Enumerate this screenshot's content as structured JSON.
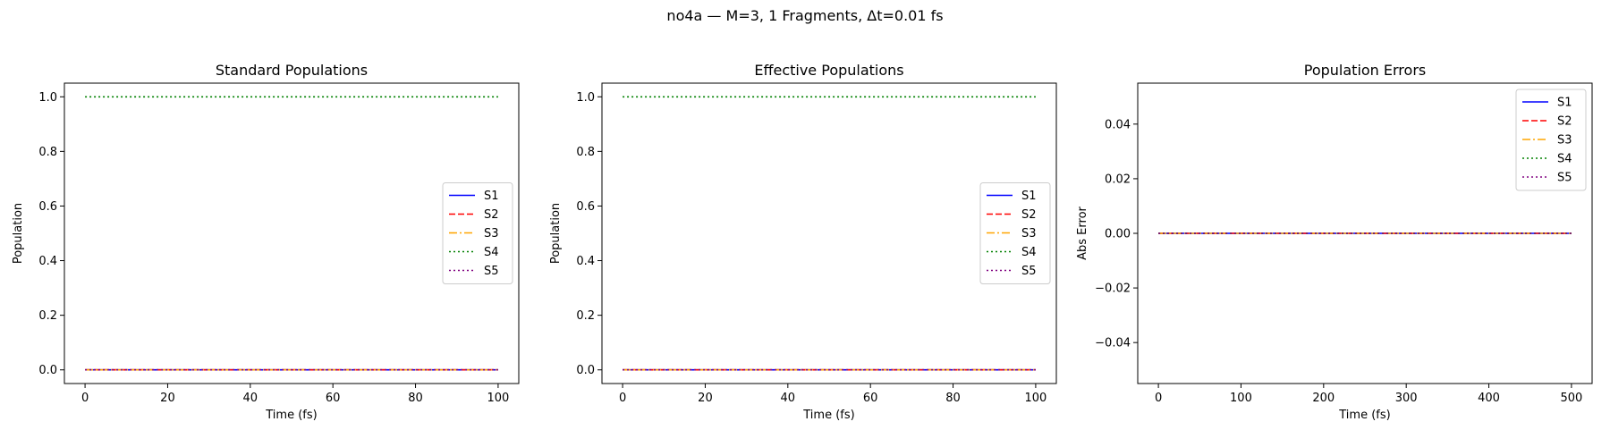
{
  "figure": {
    "suptitle": "no4a — M=3, 1 Fragments, Δt=0.01 fs"
  },
  "chart_data": [
    {
      "type": "line",
      "title": "Standard Populations",
      "xlabel": "Time (fs)",
      "ylabel": "Population",
      "xlim": [
        -5,
        105
      ],
      "ylim": [
        -0.05,
        1.05
      ],
      "xticks": [
        0,
        20,
        40,
        60,
        80,
        100
      ],
      "xtick_labels": [
        "0",
        "20",
        "40",
        "60",
        "80",
        "100"
      ],
      "yticks": [
        0.0,
        0.2,
        0.4,
        0.6,
        0.8,
        1.0
      ],
      "ytick_labels": [
        "0.0",
        "0.2",
        "0.4",
        "0.6",
        "0.8",
        "1.0"
      ],
      "grid": false,
      "legend_position": "center-right",
      "x": [
        0,
        100
      ],
      "series": [
        {
          "name": "S1",
          "color": "#0000ff",
          "style": "solid",
          "values": [
            0.0,
            0.0
          ]
        },
        {
          "name": "S2",
          "color": "#ff0000",
          "style": "dashed",
          "values": [
            0.0,
            0.0
          ]
        },
        {
          "name": "S3",
          "color": "#ffa500",
          "style": "dashdot",
          "values": [
            0.0,
            0.0
          ]
        },
        {
          "name": "S4",
          "color": "#008000",
          "style": "dotted",
          "values": [
            1.0,
            1.0
          ]
        },
        {
          "name": "S5",
          "color": "#800080",
          "style": "dotted",
          "values": [
            0.0,
            0.0
          ]
        }
      ]
    },
    {
      "type": "line",
      "title": "Effective Populations",
      "xlabel": "Time (fs)",
      "ylabel": "Population",
      "xlim": [
        -5,
        105
      ],
      "ylim": [
        -0.05,
        1.05
      ],
      "xticks": [
        0,
        20,
        40,
        60,
        80,
        100
      ],
      "xtick_labels": [
        "0",
        "20",
        "40",
        "60",
        "80",
        "100"
      ],
      "yticks": [
        0.0,
        0.2,
        0.4,
        0.6,
        0.8,
        1.0
      ],
      "ytick_labels": [
        "0.0",
        "0.2",
        "0.4",
        "0.6",
        "0.8",
        "1.0"
      ],
      "grid": false,
      "legend_position": "center-right",
      "x": [
        0,
        100
      ],
      "series": [
        {
          "name": "S1",
          "color": "#0000ff",
          "style": "solid",
          "values": [
            0.0,
            0.0
          ]
        },
        {
          "name": "S2",
          "color": "#ff0000",
          "style": "dashed",
          "values": [
            0.0,
            0.0
          ]
        },
        {
          "name": "S3",
          "color": "#ffa500",
          "style": "dashdot",
          "values": [
            0.0,
            0.0
          ]
        },
        {
          "name": "S4",
          "color": "#008000",
          "style": "dotted",
          "values": [
            1.0,
            1.0
          ]
        },
        {
          "name": "S5",
          "color": "#800080",
          "style": "dotted",
          "values": [
            0.0,
            0.0
          ]
        }
      ]
    },
    {
      "type": "line",
      "title": "Population Errors",
      "xlabel": "Time (fs)",
      "ylabel": "Abs Error",
      "xlim": [
        -25,
        525
      ],
      "ylim": [
        -0.055,
        0.055
      ],
      "xticks": [
        0,
        100,
        200,
        300,
        400,
        500
      ],
      "xtick_labels": [
        "0",
        "100",
        "200",
        "300",
        "400",
        "500"
      ],
      "yticks": [
        -0.04,
        -0.02,
        0.0,
        0.02,
        0.04
      ],
      "ytick_labels": [
        "−0.04",
        "−0.02",
        "0.00",
        "0.02",
        "0.04"
      ],
      "grid": false,
      "legend_position": "upper-right",
      "x": [
        0,
        500
      ],
      "series": [
        {
          "name": "S1",
          "color": "#0000ff",
          "style": "solid",
          "values": [
            0.0,
            0.0
          ]
        },
        {
          "name": "S2",
          "color": "#ff0000",
          "style": "dashed",
          "values": [
            0.0,
            0.0
          ]
        },
        {
          "name": "S3",
          "color": "#ffa500",
          "style": "dashdot",
          "values": [
            0.0,
            0.0
          ]
        },
        {
          "name": "S4",
          "color": "#008000",
          "style": "dotted",
          "values": [
            0.0,
            0.0
          ]
        },
        {
          "name": "S5",
          "color": "#800080",
          "style": "dotted",
          "values": [
            0.0,
            0.0
          ]
        }
      ]
    }
  ]
}
